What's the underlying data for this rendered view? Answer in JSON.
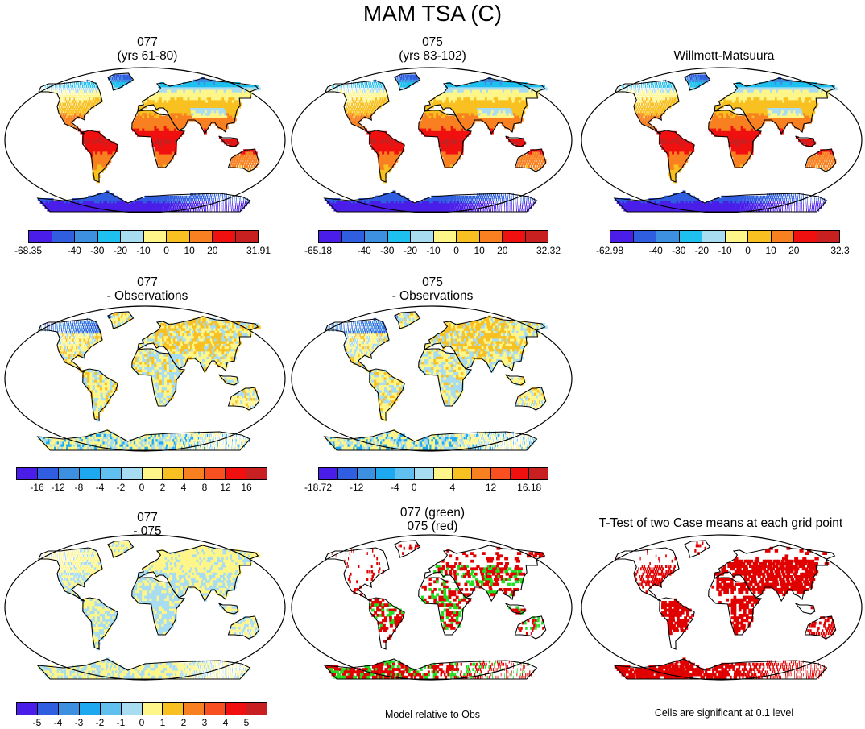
{
  "figure": {
    "title": "MAM TSA (C)"
  },
  "palette_main": [
    "#4a1ee8",
    "#2f5fe0",
    "#3d8fe0",
    "#1ec0f0",
    "#a8dcf0",
    "#fff68a",
    "#f8c020",
    "#f88020",
    "#f01010",
    "#c82020"
  ],
  "palette_diff": [
    "#4a1ee8",
    "#2f5fe0",
    "#3d8fe0",
    "#1ea8f0",
    "#60c0f0",
    "#a8dcf0",
    "#fff68a",
    "#f8c020",
    "#f88020",
    "#f85020",
    "#f01010",
    "#c82020"
  ],
  "palette_diff2": [
    "#4a1ee8",
    "#2f5fe0",
    "#3d8fe0",
    "#1ea8f0",
    "#a8dcf0",
    "#fff68a",
    "#f8c020",
    "#f88020",
    "#f01010",
    "#c82020"
  ],
  "panels": [
    {
      "id": "p1",
      "line1": "077",
      "line2": "(yrs 61-80)",
      "scheme": "abs"
    },
    {
      "id": "p2",
      "line1": "075",
      "line2": "(yrs 83-102)",
      "scheme": "abs"
    },
    {
      "id": "p3",
      "line1": "",
      "line2": "Willmott-Matsuura",
      "scheme": "abs"
    },
    {
      "id": "p4",
      "line1": "077",
      "line2": "- Observations",
      "scheme": "diff"
    },
    {
      "id": "p5",
      "line1": "075",
      "line2": "- Observations",
      "scheme": "diff"
    },
    {
      "id": "p6",
      "line1": "077",
      "line2": "- 075",
      "scheme": "diff2"
    },
    {
      "id": "p7",
      "line1": "077 (green)",
      "line2": "075 (red)",
      "scheme": "compare"
    },
    {
      "id": "p8",
      "line1": "",
      "line2": "T-Test of two Case means at each grid point",
      "scheme": "ttest"
    }
  ],
  "colorbars": [
    {
      "id": "cb1",
      "labels": [
        "-68.35",
        "-40",
        "-30",
        "-20",
        "-10",
        "0",
        "10",
        "20",
        "31.91"
      ],
      "positions": [
        0,
        2,
        3,
        4,
        5,
        6,
        7,
        8,
        10
      ]
    },
    {
      "id": "cb2",
      "labels": [
        "-65.18",
        "-40",
        "-30",
        "-20",
        "-10",
        "0",
        "10",
        "20",
        "32.32"
      ],
      "positions": [
        0,
        2,
        3,
        4,
        5,
        6,
        7,
        8,
        10
      ]
    },
    {
      "id": "cb3",
      "labels": [
        "-62.98",
        "-40",
        "-30",
        "-20",
        "-10",
        "0",
        "10",
        "20",
        "32.3"
      ],
      "positions": [
        0,
        2,
        3,
        4,
        5,
        6,
        7,
        8,
        10
      ]
    },
    {
      "id": "cb4",
      "labels": [
        "-16",
        "-12",
        "-8",
        "-4",
        "-2",
        "0",
        "2",
        "4",
        "8",
        "12",
        "16"
      ],
      "positions": [
        1,
        2,
        3,
        4,
        5,
        6,
        7,
        8,
        9,
        10,
        11
      ]
    },
    {
      "id": "cb5",
      "labels": [
        "-18.72",
        "-12",
        "-4",
        "0",
        "4",
        "12",
        "16.18"
      ],
      "positions": [
        0,
        2,
        4,
        5,
        7,
        9,
        11
      ]
    },
    {
      "id": "cb6",
      "labels": [
        "-5",
        "-4",
        "-3",
        "-2",
        "-1",
        "0",
        "1",
        "2",
        "3",
        "4",
        "5"
      ],
      "positions": [
        1,
        2,
        3,
        4,
        5,
        6,
        7,
        8,
        9,
        10,
        11
      ]
    }
  ],
  "notes": {
    "compare": "Model relative to Obs",
    "ttest": "Cells are significant at 0.1 level"
  }
}
